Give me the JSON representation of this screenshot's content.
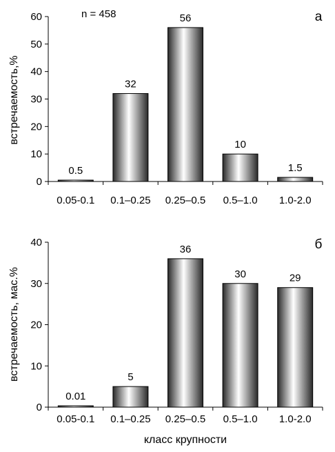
{
  "chart_data": [
    {
      "type": "bar",
      "panel_label": "а",
      "annotation": "n = 458",
      "ylabel": "встречаемость,%",
      "xlabel": "",
      "categories": [
        "0.05-0.1",
        "0.1–0.25",
        "0.25–0.5",
        "0.5–1.0",
        "1.0-2.0"
      ],
      "values": [
        0.5,
        32,
        56,
        10,
        1.5
      ],
      "data_labels": [
        "0.5",
        "32",
        "56",
        "10",
        "1.5"
      ],
      "ylim": [
        0,
        60
      ],
      "yticks": [
        "0",
        "10",
        "20",
        "30",
        "40",
        "50",
        "60"
      ],
      "grid": false
    },
    {
      "type": "bar",
      "panel_label": "б",
      "ylabel": "встречаемость, мас.%",
      "xlabel": "класс крупности",
      "categories": [
        "0.05-0.1",
        "0.1–0.25",
        "0.25–0.5",
        "0.5–1.0",
        "1.0-2.0"
      ],
      "values": [
        0.01,
        5,
        36,
        30,
        29
      ],
      "data_labels": [
        "0.01",
        "5",
        "36",
        "30",
        "29"
      ],
      "ylim": [
        0,
        40
      ],
      "yticks": [
        "0",
        "10",
        "20",
        "30",
        "40"
      ],
      "grid": false
    }
  ],
  "colors": {
    "bar_dark": "#2a2a2a",
    "bar_light": "#ffffff",
    "axis": "#000000"
  }
}
